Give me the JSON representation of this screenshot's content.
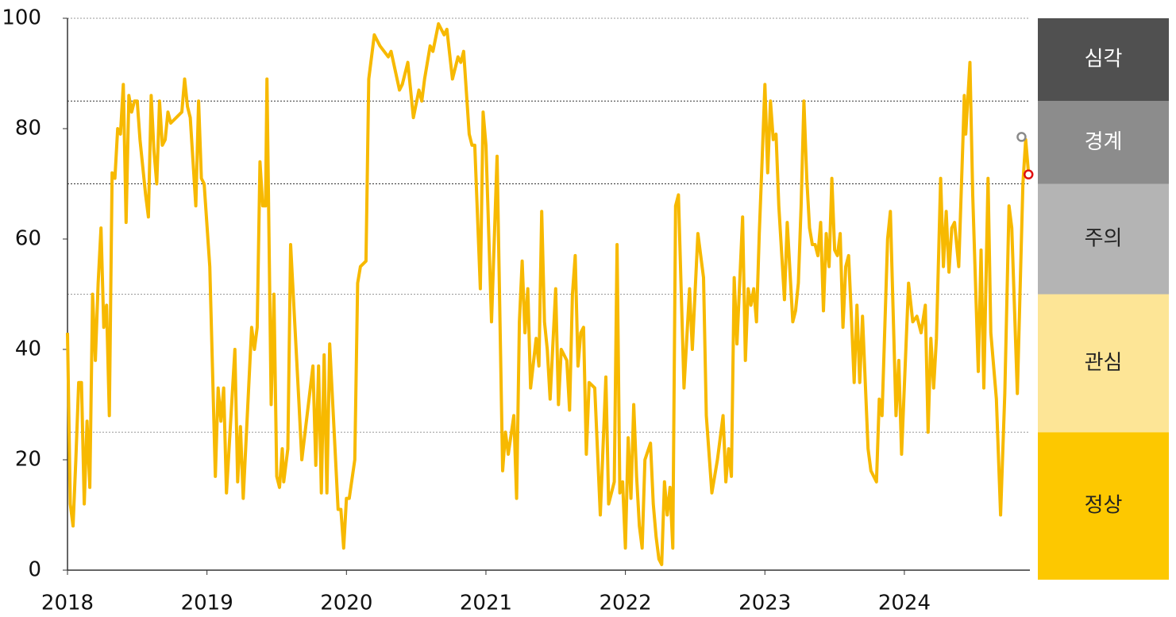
{
  "chart_data": {
    "type": "line",
    "color": "#f7b900",
    "xlim": [
      2018,
      2024.9
    ],
    "xticks": [
      2018,
      2019,
      2020,
      2021,
      2022,
      2023,
      2024
    ],
    "ylim": [
      0,
      100
    ],
    "yticks": [
      0,
      20,
      40,
      60,
      80,
      100
    ],
    "x": [
      2018.0,
      2018.02,
      2018.04,
      2018.06,
      2018.08,
      2018.1,
      2018.12,
      2018.14,
      2018.16,
      2018.18,
      2018.2,
      2018.22,
      2018.24,
      2018.26,
      2018.28,
      2018.3,
      2018.32,
      2018.34,
      2018.36,
      2018.38,
      2018.4,
      2018.42,
      2018.44,
      2018.46,
      2018.48,
      2018.5,
      2018.52,
      2018.56,
      2018.58,
      2018.6,
      2018.62,
      2018.64,
      2018.66,
      2018.68,
      2018.7,
      2018.72,
      2018.74,
      2018.78,
      2018.82,
      2018.84,
      2018.86,
      2018.88,
      2018.92,
      2018.94,
      2018.96,
      2018.98,
      2019.02,
      2019.06,
      2019.08,
      2019.1,
      2019.12,
      2019.14,
      2019.2,
      2019.22,
      2019.24,
      2019.26,
      2019.32,
      2019.34,
      2019.36,
      2019.38,
      2019.4,
      2019.42,
      2019.43,
      2019.46,
      2019.48,
      2019.5,
      2019.52,
      2019.54,
      2019.55,
      2019.58,
      2019.6,
      2019.66,
      2019.68,
      2019.76,
      2019.78,
      2019.8,
      2019.82,
      2019.84,
      2019.86,
      2019.88,
      2019.94,
      2019.96,
      2019.98,
      2020.0,
      2020.02,
      2020.06,
      2020.08,
      2020.1,
      2020.14,
      2020.16,
      2020.2,
      2020.24,
      2020.3,
      2020.32,
      2020.38,
      2020.4,
      2020.44,
      2020.48,
      2020.52,
      2020.54,
      2020.56,
      2020.6,
      2020.62,
      2020.66,
      2020.7,
      2020.72,
      2020.76,
      2020.8,
      2020.82,
      2020.84,
      2020.88,
      2020.9,
      2020.92,
      2020.96,
      2020.98,
      2021.0,
      2021.04,
      2021.08,
      2021.12,
      2021.14,
      2021.16,
      2021.2,
      2021.22,
      2021.24,
      2021.26,
      2021.28,
      2021.3,
      2021.32,
      2021.36,
      2021.38,
      2021.4,
      2021.42,
      2021.44,
      2021.46,
      2021.5,
      2021.52,
      2021.54,
      2021.58,
      2021.6,
      2021.62,
      2021.64,
      2021.66,
      2021.68,
      2021.7,
      2021.72,
      2021.74,
      2021.78,
      2021.82,
      2021.86,
      2021.88,
      2021.92,
      2021.94,
      2021.96,
      2021.98,
      2022.0,
      2022.02,
      2022.04,
      2022.06,
      2022.08,
      2022.1,
      2022.12,
      2022.14,
      2022.18,
      2022.2,
      2022.22,
      2022.24,
      2022.26,
      2022.28,
      2022.3,
      2022.32,
      2022.34,
      2022.36,
      2022.38,
      2022.42,
      2022.46,
      2022.48,
      2022.52,
      2022.56,
      2022.58,
      2022.62,
      2022.66,
      2022.7,
      2022.72,
      2022.74,
      2022.76,
      2022.78,
      2022.8,
      2022.84,
      2022.86,
      2022.88,
      2022.9,
      2022.92,
      2022.94,
      2022.96,
      2022.98,
      2023.0,
      2023.02,
      2023.04,
      2023.06,
      2023.08,
      2023.1,
      2023.14,
      2023.16,
      2023.2,
      2023.22,
      2023.24,
      2023.26,
      2023.28,
      2023.3,
      2023.32,
      2023.34,
      2023.36,
      2023.38,
      2023.4,
      2023.42,
      2023.44,
      2023.46,
      2023.48,
      2023.5,
      2023.52,
      2023.54,
      2023.56,
      2023.58,
      2023.6,
      2023.62,
      2023.64,
      2023.66,
      2023.68,
      2023.7,
      2023.74,
      2023.76,
      2023.8,
      2023.82,
      2023.84,
      2023.88,
      2023.9,
      2023.94,
      2023.96,
      2023.98,
      2024.03,
      2024.06,
      2024.09,
      2024.12,
      2024.15,
      2024.17,
      2024.19,
      2024.21,
      2024.23,
      2024.26,
      2024.28,
      2024.3,
      2024.32,
      2024.34,
      2024.36,
      2024.39,
      2024.42,
      2024.43,
      2024.44,
      2024.47,
      2024.49,
      2024.53,
      2024.55,
      2024.57,
      2024.6,
      2024.62,
      2024.66,
      2024.69,
      2024.72,
      2024.75,
      2024.77,
      2024.81,
      2024.85,
      2024.87,
      2024.89
    ],
    "values": [
      43,
      12,
      8,
      20,
      34,
      34,
      12,
      27,
      15,
      50,
      38,
      52,
      62,
      44,
      48,
      28,
      72,
      71,
      80,
      79,
      88,
      63,
      86,
      83,
      85,
      85,
      78,
      68,
      64,
      86,
      76,
      70,
      85,
      77,
      78,
      83,
      81,
      82,
      83,
      89,
      84,
      82,
      66,
      85,
      71,
      70,
      55,
      17,
      33,
      27,
      33,
      14,
      40,
      16,
      26,
      13,
      44,
      40,
      44,
      74,
      66,
      66,
      89,
      30,
      50,
      17,
      15,
      22,
      16,
      22,
      59,
      30,
      20,
      37,
      19,
      37,
      14,
      39,
      14,
      41,
      11,
      11,
      4,
      13,
      13,
      20,
      52,
      55,
      56,
      89,
      97,
      95,
      93,
      94,
      87,
      88,
      92,
      82,
      87,
      85,
      89,
      95,
      94,
      99,
      97,
      98,
      89,
      93,
      92,
      94,
      79,
      77,
      77,
      51,
      83,
      77,
      45,
      75,
      18,
      25,
      21,
      28,
      13,
      45,
      56,
      43,
      51,
      33,
      42,
      37,
      65,
      45,
      40,
      31,
      51,
      30,
      40,
      38,
      29,
      50,
      57,
      37,
      43,
      44,
      21,
      34,
      33,
      10,
      35,
      12,
      16,
      59,
      14,
      16,
      4,
      24,
      13,
      30,
      17,
      8,
      4,
      20,
      23,
      12,
      6,
      2,
      1,
      16,
      10,
      15,
      4,
      66,
      68,
      33,
      51,
      40,
      61,
      53,
      28,
      14,
      20,
      28,
      16,
      22,
      17,
      53,
      41,
      64,
      38,
      51,
      48,
      51,
      45,
      61,
      74,
      88,
      72,
      85,
      78,
      79,
      66,
      49,
      63,
      45,
      47,
      52,
      66,
      85,
      71,
      62,
      59,
      59,
      57,
      63,
      47,
      61,
      55,
      71,
      58,
      57,
      61,
      44,
      55,
      57,
      46,
      34,
      48,
      34,
      46,
      22,
      18,
      16,
      31,
      28,
      60,
      65,
      28,
      38,
      21,
      52,
      45,
      46,
      43,
      48,
      25,
      42,
      33,
      42,
      71,
      55,
      65,
      54,
      62,
      63,
      55,
      78,
      86,
      79,
      92,
      68,
      36,
      58,
      33,
      71,
      43,
      31,
      10,
      32,
      66,
      62,
      32,
      70,
      78,
      72
    ],
    "points": [
      {
        "x": 2024.84,
        "y": 78.5,
        "color": "#8a8a8a"
      },
      {
        "x": 2024.89,
        "y": 71.7,
        "color": "#e01010"
      }
    ],
    "bands": [
      {
        "label": "정상",
        "from": 0,
        "to": 25,
        "color": "#fdc800",
        "text_color": "#222"
      },
      {
        "label": "관심",
        "from": 25,
        "to": 50,
        "color": "#fde596",
        "text_color": "#222"
      },
      {
        "label": "주의",
        "from": 50,
        "to": 70,
        "color": "#b4b4b4",
        "text_color": "#222"
      },
      {
        "label": "경계",
        "from": 70,
        "to": 85,
        "color": "#8c8c8c",
        "text_color": "#fff"
      },
      {
        "label": "심각",
        "from": 85,
        "to": 100,
        "color": "#505050",
        "text_color": "#fff"
      }
    ]
  }
}
